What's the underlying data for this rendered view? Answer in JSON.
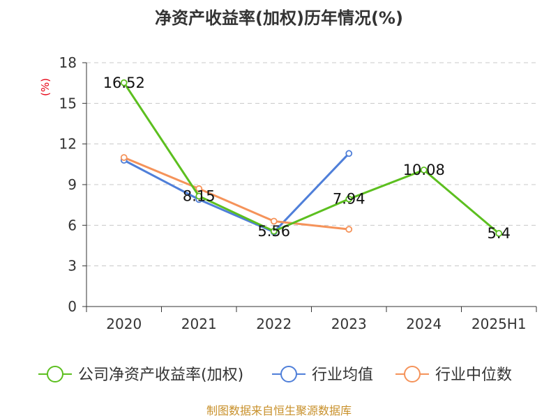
{
  "chart_data": {
    "type": "line",
    "title": "净资产收益率(加权)历年情况(%)",
    "ylabel": "(%)",
    "xlabel": "",
    "categories": [
      "2020",
      "2021",
      "2022",
      "2023",
      "2024",
      "2025H1"
    ],
    "ylim": [
      0,
      18
    ],
    "yticks": [
      0,
      3,
      6,
      9,
      12,
      15,
      18
    ],
    "grid": true,
    "legend_position": "bottom",
    "series": [
      {
        "name": "公司净资产收益率(加权)",
        "color": "#5cbf1f",
        "values": [
          16.52,
          8.15,
          5.56,
          7.94,
          10.08,
          5.4
        ],
        "labels": [
          "16.52",
          "8.15",
          "5.56",
          "7.94",
          "10.08",
          "5.4"
        ]
      },
      {
        "name": "行业均值",
        "color": "#4f7fd9",
        "values": [
          10.8,
          7.9,
          5.5,
          11.3,
          null,
          null
        ]
      },
      {
        "name": "行业中位数",
        "color": "#f5935a",
        "values": [
          11.0,
          8.7,
          6.3,
          5.7,
          null,
          null
        ]
      }
    ]
  },
  "source": "制图数据来自恒生聚源数据库"
}
